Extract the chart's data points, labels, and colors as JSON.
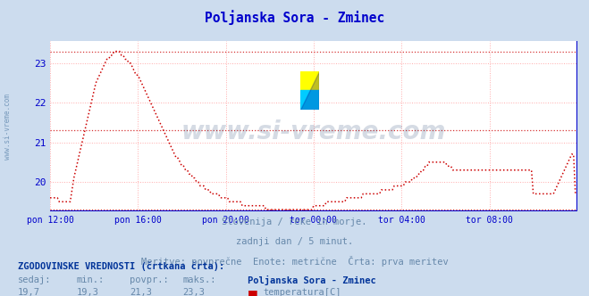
{
  "title": "Poljanska Sora - Zminec",
  "title_color": "#0000cc",
  "bg_color": "#ccdcee",
  "plot_bg_color": "#ffffff",
  "line_color": "#cc0000",
  "axis_color": "#0000cc",
  "grid_color": "#ffaaaa",
  "xlim": [
    0,
    288
  ],
  "ylim": [
    19.25,
    23.55
  ],
  "yticks": [
    20,
    21,
    22,
    23
  ],
  "xtick_labels": [
    "pon 12:00",
    "pon 16:00",
    "pon 20:00",
    "tor 00:00",
    "tor 04:00",
    "tor 08:00"
  ],
  "xtick_positions": [
    0,
    48,
    96,
    144,
    192,
    240
  ],
  "watermark": "www.si-vreme.com",
  "watermark_color": "#1a3a6a",
  "watermark_alpha": 0.18,
  "subtitle1": "Slovenija / reke in morje.",
  "subtitle2": "zadnji dan / 5 minut.",
  "subtitle3": "Meritve: povprečne  Enote: metrične  Črta: prva meritev",
  "subtitle_color": "#6688aa",
  "footer_label1": "ZGODOVINSKE VREDNOSTI (črtkana črta):",
  "footer_row1": [
    "sedaj:",
    "min.:",
    "povpr.:",
    "maks.:",
    "Poljanska Sora - Zminec"
  ],
  "footer_row2": [
    "19,7",
    "19,3",
    "21,3",
    "23,3",
    "temperatura[C]"
  ],
  "footer_color": "#6688aa",
  "footer_bold_color": "#003399",
  "min_line": 19.3,
  "avg_line": 21.3,
  "max_line": 23.3,
  "temp_data": [
    19.6,
    19.6,
    19.6,
    19.6,
    19.6,
    19.5,
    19.5,
    19.5,
    19.5,
    19.5,
    19.5,
    19.5,
    19.8,
    20.1,
    20.3,
    20.5,
    20.7,
    20.9,
    21.1,
    21.3,
    21.5,
    21.7,
    21.9,
    22.1,
    22.3,
    22.5,
    22.6,
    22.7,
    22.8,
    22.9,
    23.0,
    23.1,
    23.1,
    23.2,
    23.2,
    23.3,
    23.3,
    23.3,
    23.3,
    23.2,
    23.2,
    23.1,
    23.1,
    23.0,
    23.0,
    22.9,
    22.8,
    22.7,
    22.7,
    22.6,
    22.5,
    22.4,
    22.3,
    22.2,
    22.1,
    22.0,
    21.9,
    21.8,
    21.7,
    21.6,
    21.5,
    21.4,
    21.3,
    21.2,
    21.1,
    21.0,
    20.9,
    20.8,
    20.7,
    20.6,
    20.6,
    20.5,
    20.4,
    20.4,
    20.3,
    20.3,
    20.2,
    20.2,
    20.1,
    20.1,
    20.0,
    20.0,
    19.9,
    19.9,
    19.9,
    19.8,
    19.8,
    19.8,
    19.7,
    19.7,
    19.7,
    19.7,
    19.7,
    19.6,
    19.6,
    19.6,
    19.6,
    19.6,
    19.5,
    19.5,
    19.5,
    19.5,
    19.5,
    19.5,
    19.5,
    19.4,
    19.4,
    19.4,
    19.4,
    19.4,
    19.4,
    19.4,
    19.4,
    19.4,
    19.4,
    19.4,
    19.4,
    19.4,
    19.3,
    19.3,
    19.3,
    19.3,
    19.3,
    19.3,
    19.3,
    19.3,
    19.3,
    19.3,
    19.3,
    19.3,
    19.3,
    19.3,
    19.3,
    19.3,
    19.3,
    19.3,
    19.3,
    19.3,
    19.3,
    19.3,
    19.3,
    19.3,
    19.3,
    19.3,
    19.4,
    19.4,
    19.4,
    19.4,
    19.4,
    19.4,
    19.4,
    19.5,
    19.5,
    19.5,
    19.5,
    19.5,
    19.5,
    19.5,
    19.5,
    19.5,
    19.5,
    19.5,
    19.6,
    19.6,
    19.6,
    19.6,
    19.6,
    19.6,
    19.6,
    19.6,
    19.6,
    19.7,
    19.7,
    19.7,
    19.7,
    19.7,
    19.7,
    19.7,
    19.7,
    19.7,
    19.7,
    19.8,
    19.8,
    19.8,
    19.8,
    19.8,
    19.8,
    19.8,
    19.9,
    19.9,
    19.9,
    19.9,
    19.9,
    19.9,
    20.0,
    20.0,
    20.0,
    20.0,
    20.1,
    20.1,
    20.1,
    20.2,
    20.2,
    20.3,
    20.3,
    20.4,
    20.4,
    20.5,
    20.5,
    20.5,
    20.5,
    20.5,
    20.5,
    20.5,
    20.5,
    20.5,
    20.5,
    20.4,
    20.4,
    20.4,
    20.3,
    20.3,
    20.3,
    20.3,
    20.3,
    20.3,
    20.3,
    20.3,
    20.3,
    20.3,
    20.3,
    20.3,
    20.3,
    20.3,
    20.3,
    20.3,
    20.3,
    20.3,
    20.3,
    20.3,
    20.3,
    20.3,
    20.3,
    20.3,
    20.3,
    20.3,
    20.3,
    20.3,
    20.3,
    20.3,
    20.3,
    20.3,
    20.3,
    20.3,
    20.3,
    20.3,
    20.3,
    20.3,
    20.3,
    20.3,
    20.3,
    20.3,
    20.3,
    20.3,
    19.7,
    19.7,
    19.7,
    19.7,
    19.7,
    19.7,
    19.7,
    19.7,
    19.7,
    19.7,
    19.7,
    19.7,
    19.8,
    19.9,
    20.0,
    20.1,
    20.2,
    20.3,
    20.4,
    20.5,
    20.6,
    20.7,
    20.7,
    19.7
  ]
}
